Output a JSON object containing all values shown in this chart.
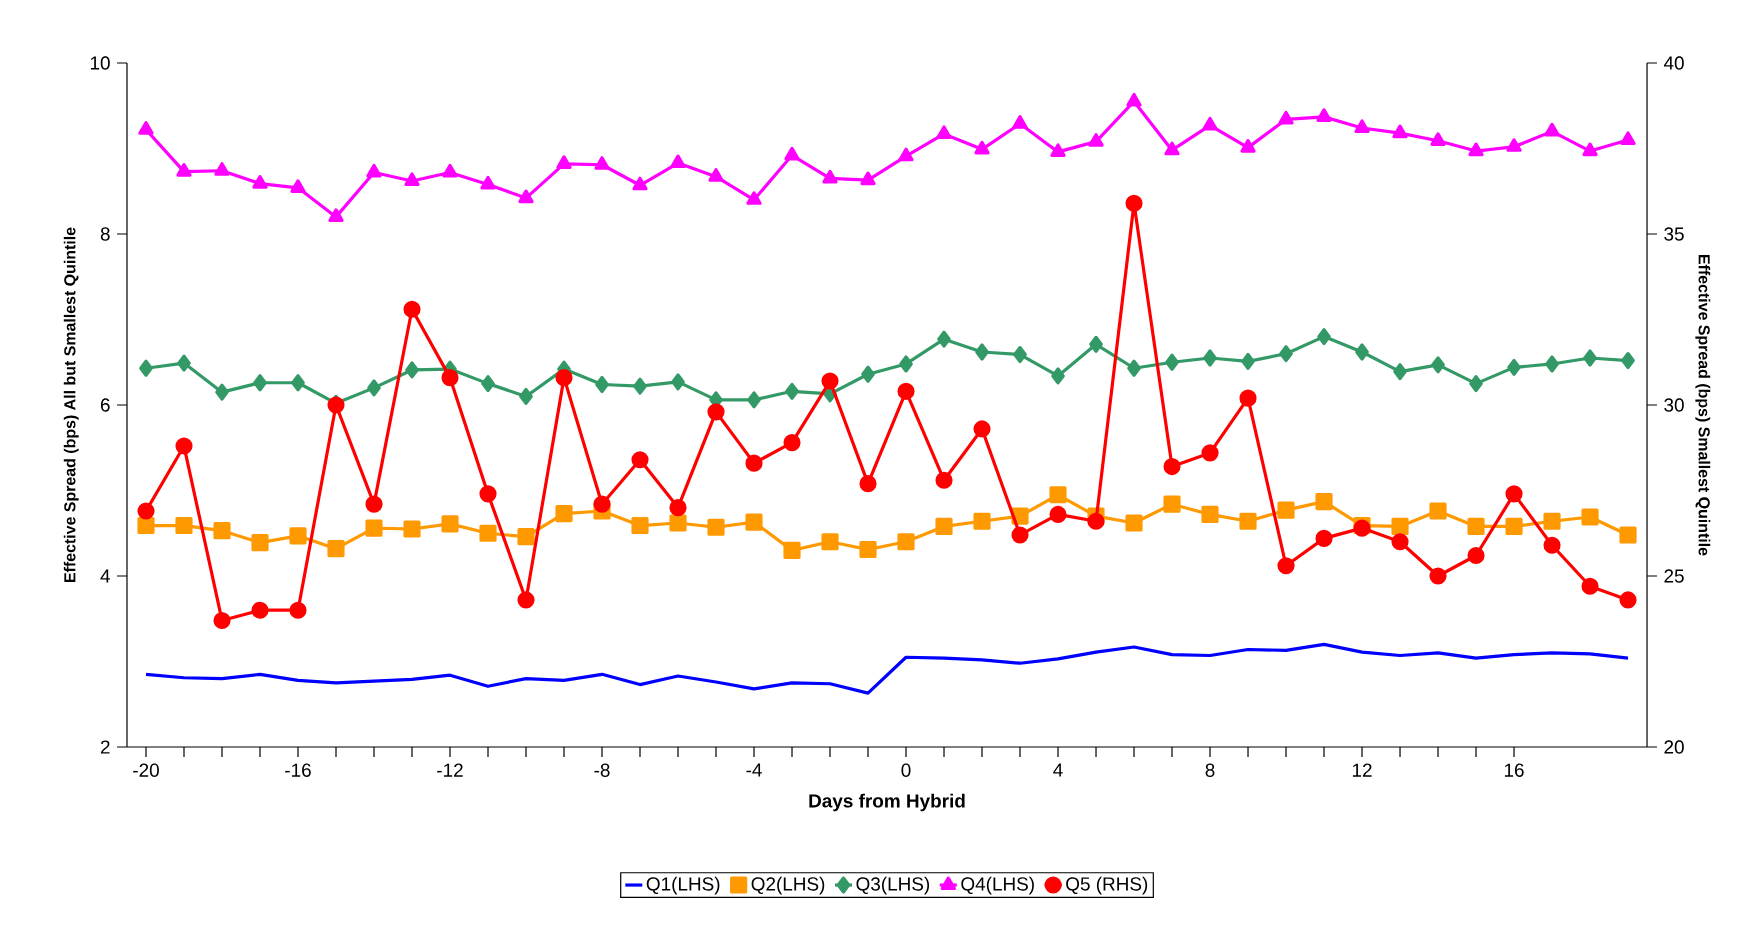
{
  "chart_data": {
    "type": "line",
    "xlabel": "Days from Hybrid",
    "ylabel": "Effective Spread (bps) All but Smallest Quintile",
    "y2label": "Effective Spread (bps) Smallest Quintile",
    "x": [
      -20,
      -19,
      -18,
      -17,
      -16,
      -15,
      -14,
      -13,
      -12,
      -11,
      -10,
      -9,
      -8,
      -7,
      -6,
      -5,
      -4,
      -3,
      -2,
      -1,
      0,
      1,
      2,
      3,
      4,
      5,
      6,
      7,
      8,
      9,
      10,
      11,
      12,
      13,
      14,
      15,
      16,
      17,
      18,
      19
    ],
    "xlim": [
      -20.5,
      19.5
    ],
    "xticks": [
      -20,
      -16,
      -12,
      -8,
      -4,
      0,
      4,
      8,
      12,
      16
    ],
    "ylim": [
      2,
      10
    ],
    "yticks": [
      2,
      4,
      6,
      8,
      10
    ],
    "y2lim": [
      20,
      40
    ],
    "y2ticks": [
      20,
      25,
      30,
      35,
      40
    ],
    "grid": false,
    "legend": "bottom",
    "line_style": "solid",
    "series": [
      {
        "name": "Q1(LHS)",
        "color": "#0000ff",
        "marker": "none",
        "values": [
          2.85,
          2.81,
          2.8,
          2.85,
          2.78,
          2.75,
          2.77,
          2.79,
          2.84,
          2.71,
          2.8,
          2.78,
          2.85,
          2.73,
          2.83,
          2.76,
          2.68,
          2.75,
          2.74,
          2.63,
          3.05,
          3.04,
          3.02,
          2.98,
          3.03,
          3.11,
          3.17,
          3.08,
          3.07,
          3.14,
          3.13,
          3.2,
          3.11,
          3.07,
          3.1,
          3.04,
          3.08,
          3.1,
          3.09,
          3.04
        ]
      },
      {
        "name": "Q2(LHS)",
        "color": "#ff9900",
        "marker": "square",
        "values": [
          4.59,
          4.59,
          4.53,
          4.39,
          4.47,
          4.32,
          4.56,
          4.55,
          4.61,
          4.5,
          4.46,
          4.73,
          4.76,
          4.59,
          4.62,
          4.57,
          4.63,
          4.3,
          4.4,
          4.31,
          4.4,
          4.58,
          4.64,
          4.7,
          4.95,
          4.7,
          4.62,
          4.84,
          4.72,
          4.64,
          4.77,
          4.87,
          4.59,
          4.58,
          4.76,
          4.58,
          4.58,
          4.64,
          4.69,
          4.48
        ]
      },
      {
        "name": "Q3(LHS)",
        "color": "#339966",
        "marker": "diamond",
        "values": [
          6.43,
          6.49,
          6.15,
          6.26,
          6.26,
          6.02,
          6.2,
          6.41,
          6.42,
          6.25,
          6.1,
          6.42,
          6.24,
          6.22,
          6.27,
          6.06,
          6.06,
          6.16,
          6.13,
          6.36,
          6.48,
          6.77,
          6.62,
          6.59,
          6.34,
          6.71,
          6.43,
          6.5,
          6.55,
          6.51,
          6.6,
          6.8,
          6.62,
          6.39,
          6.47,
          6.25,
          6.44,
          6.48,
          6.55,
          6.52
        ]
      },
      {
        "name": "Q4(LHS)",
        "color": "#ff00ff",
        "marker": "triangle",
        "values": [
          9.22,
          8.73,
          8.74,
          8.59,
          8.54,
          8.2,
          8.72,
          8.62,
          8.72,
          8.58,
          8.42,
          8.82,
          8.81,
          8.57,
          8.83,
          8.67,
          8.4,
          8.92,
          8.65,
          8.63,
          8.91,
          9.17,
          8.99,
          9.29,
          8.96,
          9.08,
          9.55,
          8.98,
          9.27,
          9.01,
          9.34,
          9.37,
          9.24,
          9.18,
          9.09,
          8.97,
          9.02,
          9.2,
          8.97,
          9.1
        ]
      },
      {
        "name": "Q5 (RHS)",
        "color": "#ff0000",
        "marker": "circle",
        "axis": "y2",
        "values": [
          26.9,
          28.8,
          23.7,
          24.0,
          24.0,
          30.0,
          27.1,
          32.8,
          30.8,
          27.4,
          24.3,
          30.8,
          27.1,
          28.4,
          27.0,
          29.8,
          28.3,
          28.9,
          30.7,
          27.7,
          30.4,
          27.8,
          29.3,
          26.2,
          26.8,
          26.6,
          35.9,
          28.2,
          28.6,
          30.2,
          25.3,
          26.1,
          26.4,
          26.0,
          25.0,
          25.6,
          27.4,
          25.9,
          24.7,
          24.3
        ]
      }
    ]
  }
}
